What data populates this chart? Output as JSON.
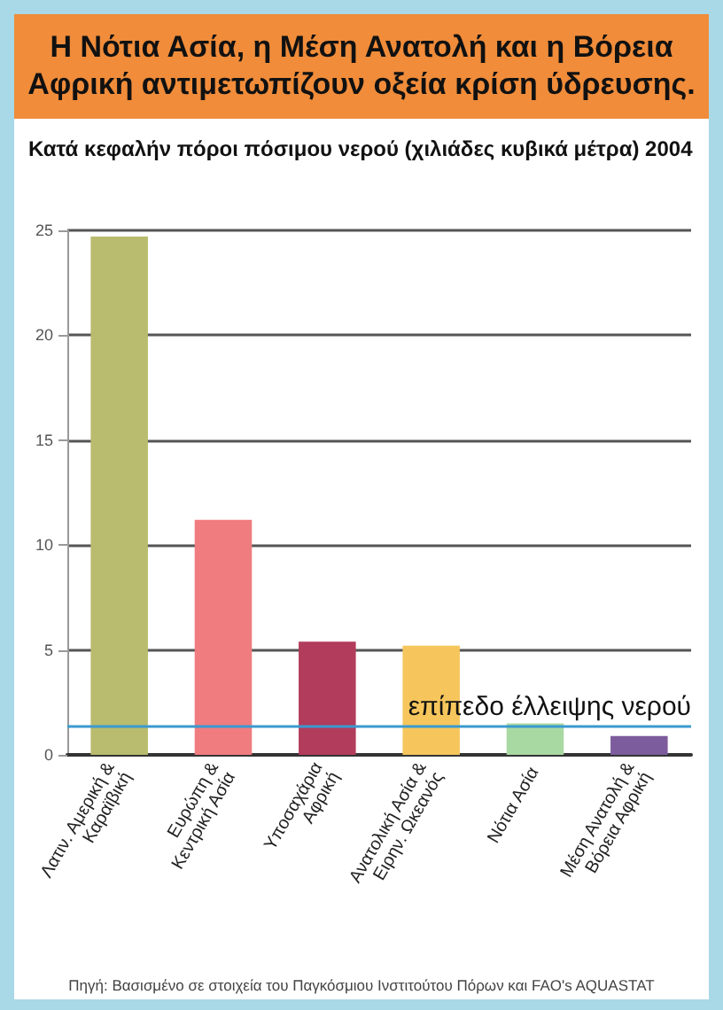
{
  "chart_data": {
    "type": "bar",
    "title": "Η Νότια Ασία, η Μέση Ανατολή και η  Βόρεια Αφρική αντιμετωπίζουν οξεία κρίση ύδρευσης.",
    "subtitle": "Κατά κεφαλήν πόροι πόσιμου νερού (χιλιάδες κυβικά μέτρα) 2004",
    "categories": [
      "Λατιν. Αμερική & Καραϊβική",
      "Ευρώπη & Κεντρική Ασία",
      "Υποσαχάρια Αφρική",
      "Ανατολική Ασία & Ειρην. Ωκεανός",
      "Νότια Ασία",
      "Μέση Ανατολή & Βόρεια Αφρική"
    ],
    "values": [
      24.7,
      11.2,
      5.4,
      5.2,
      1.5,
      0.9
    ],
    "colors": [
      "#b9bb6e",
      "#f07c80",
      "#b23c5c",
      "#f6c65c",
      "#a9d9a2",
      "#7c5c9c"
    ],
    "ylim": [
      0,
      25
    ],
    "yticks": [
      0,
      5,
      10,
      15,
      20,
      25
    ],
    "grid": "y",
    "ref_lines": [
      {
        "axis": "y",
        "value": 1.4,
        "label": "επίπεδο έλλειψης νερού",
        "color": "#3a9ad0"
      }
    ],
    "annotations": [
      "Πηγή: Βασισμένο σε στοιχεία του Παγκόσμιου Ινστιτούτου Πόρων και FAO's AQUASTAT"
    ]
  }
}
